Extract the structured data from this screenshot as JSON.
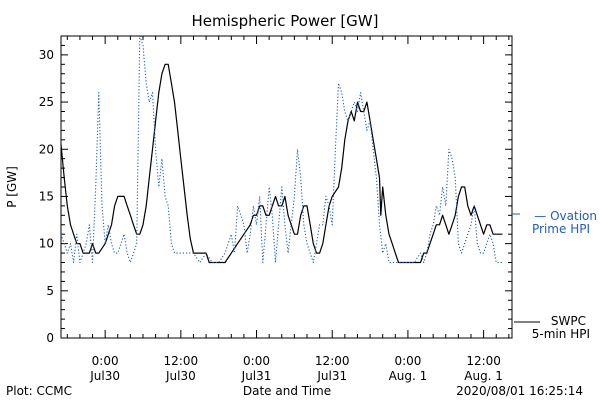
{
  "chart_data": {
    "type": "line",
    "title": "Hemispheric Power [GW]",
    "xlabel": "Date and Time",
    "ylabel": "P [GW]",
    "ylim": [
      0,
      32
    ],
    "yticks": [
      0,
      5,
      10,
      15,
      20,
      25,
      30
    ],
    "x_unit": "hours",
    "x_tick_values": [
      0,
      12,
      24,
      36,
      48,
      60
    ],
    "x_tick_labels": [
      {
        "time": "0:00",
        "date": "Jul30"
      },
      {
        "time": "12:00",
        "date": "Jul30"
      },
      {
        "time": "0:00",
        "date": "Jul31"
      },
      {
        "time": "12:00",
        "date": "Jul31"
      },
      {
        "time": "0:00",
        "date": "Aug. 1"
      },
      {
        "time": "12:00",
        "date": "Aug. 1"
      }
    ],
    "xlim": [
      -7,
      64.5
    ],
    "series": [
      {
        "name": "SWPC 5-min HPI",
        "legend_line1": "SWPC",
        "legend_line2": "5-min HPI",
        "color": "#000000",
        "style": "solid",
        "points": [
          [
            -7,
            20.5
          ],
          [
            -6.5,
            17
          ],
          [
            -6,
            14
          ],
          [
            -5.5,
            12
          ],
          [
            -5,
            11
          ],
          [
            -4.5,
            10
          ],
          [
            -4,
            10
          ],
          [
            -3.5,
            9
          ],
          [
            -3,
            9
          ],
          [
            -2.5,
            9
          ],
          [
            -2,
            10
          ],
          [
            -1.5,
            9
          ],
          [
            -1,
            9
          ],
          [
            0,
            10
          ],
          [
            1,
            12
          ],
          [
            1.5,
            14
          ],
          [
            2,
            15
          ],
          [
            3,
            15
          ],
          [
            3.5,
            14
          ],
          [
            4,
            13
          ],
          [
            4.5,
            12
          ],
          [
            5,
            11
          ],
          [
            5.5,
            11
          ],
          [
            6,
            12
          ],
          [
            6.5,
            14
          ],
          [
            7,
            17
          ],
          [
            7.5,
            20
          ],
          [
            8,
            23
          ],
          [
            8.5,
            26
          ],
          [
            9,
            28
          ],
          [
            9.5,
            29
          ],
          [
            10,
            29
          ],
          [
            10.5,
            27
          ],
          [
            11,
            25
          ],
          [
            11.5,
            22
          ],
          [
            12,
            19
          ],
          [
            12.5,
            16
          ],
          [
            13,
            13
          ],
          [
            13.5,
            10.5
          ],
          [
            14,
            9
          ],
          [
            15,
            9
          ],
          [
            16,
            9
          ],
          [
            16.5,
            8
          ],
          [
            18,
            8
          ],
          [
            19,
            8
          ],
          [
            20,
            9
          ],
          [
            21,
            10
          ],
          [
            22,
            11
          ],
          [
            23,
            12
          ],
          [
            23.5,
            13
          ],
          [
            24,
            13
          ],
          [
            24.5,
            14
          ],
          [
            25,
            14
          ],
          [
            25.5,
            13
          ],
          [
            26,
            13
          ],
          [
            26.5,
            14
          ],
          [
            27,
            15
          ],
          [
            27.5,
            14
          ],
          [
            28,
            14
          ],
          [
            28.5,
            15
          ],
          [
            29,
            13
          ],
          [
            29.5,
            12
          ],
          [
            30,
            11
          ],
          [
            30.5,
            11
          ],
          [
            31,
            13
          ],
          [
            31.5,
            14
          ],
          [
            32,
            14
          ],
          [
            32.5,
            12
          ],
          [
            33,
            10
          ],
          [
            33.5,
            9
          ],
          [
            34,
            9
          ],
          [
            34.5,
            10
          ],
          [
            35,
            12
          ],
          [
            35.5,
            14
          ],
          [
            36,
            15
          ],
          [
            37,
            16
          ],
          [
            37.5,
            18
          ],
          [
            38,
            21
          ],
          [
            38.5,
            23
          ],
          [
            39,
            24
          ],
          [
            39.5,
            23
          ],
          [
            40,
            25
          ],
          [
            40.5,
            24
          ],
          [
            41,
            24
          ],
          [
            41.5,
            25
          ],
          [
            42,
            23
          ],
          [
            42.5,
            21
          ],
          [
            43,
            19
          ],
          [
            43.5,
            17
          ],
          [
            43.7,
            13
          ],
          [
            44,
            16
          ],
          [
            44.5,
            13
          ],
          [
            45,
            11
          ],
          [
            45.5,
            10
          ],
          [
            46,
            9
          ],
          [
            46.5,
            8
          ],
          [
            48,
            8
          ],
          [
            49,
            8
          ],
          [
            50,
            8
          ],
          [
            50.5,
            9
          ],
          [
            51,
            9
          ],
          [
            51.5,
            10
          ],
          [
            52,
            11
          ],
          [
            52.5,
            12
          ],
          [
            53,
            12
          ],
          [
            53.5,
            13
          ],
          [
            54,
            12
          ],
          [
            54.5,
            11
          ],
          [
            55,
            12
          ],
          [
            55.5,
            13
          ],
          [
            56,
            15
          ],
          [
            56.5,
            16
          ],
          [
            57,
            16
          ],
          [
            57.5,
            14
          ],
          [
            58,
            13
          ],
          [
            58.5,
            14
          ],
          [
            59,
            13
          ],
          [
            59.5,
            12
          ],
          [
            60,
            11
          ],
          [
            60.5,
            12
          ],
          [
            61,
            12
          ],
          [
            61.5,
            11
          ],
          [
            62,
            11
          ],
          [
            63,
            11
          ]
        ]
      },
      {
        "name": "Ovation Prime HPI",
        "legend_line1": "— Ovation",
        "legend_line2": "Prime HPI",
        "color": "#1f5fbf",
        "style": "dotted",
        "points": [
          [
            -7,
            11
          ],
          [
            -6.5,
            10
          ],
          [
            -6,
            9
          ],
          [
            -5.5,
            10
          ],
          [
            -5,
            8
          ],
          [
            -4.5,
            11
          ],
          [
            -4,
            8
          ],
          [
            -3.5,
            9
          ],
          [
            -3,
            10
          ],
          [
            -2.5,
            12
          ],
          [
            -2,
            8
          ],
          [
            -1.5,
            16
          ],
          [
            -1,
            26
          ],
          [
            -0.5,
            14
          ],
          [
            0,
            10
          ],
          [
            0.5,
            12
          ],
          [
            1,
            10
          ],
          [
            1.5,
            9
          ],
          [
            2,
            9
          ],
          [
            3,
            11
          ],
          [
            3.5,
            9
          ],
          [
            4,
            8
          ],
          [
            5,
            10
          ],
          [
            5.5,
            32
          ],
          [
            6,
            31
          ],
          [
            6.5,
            27
          ],
          [
            7,
            25
          ],
          [
            7.5,
            26
          ],
          [
            8,
            20
          ],
          [
            8.5,
            16
          ],
          [
            9,
            19
          ],
          [
            9.5,
            15
          ],
          [
            10,
            14
          ],
          [
            10.5,
            10
          ],
          [
            11,
            9
          ],
          [
            12,
            9
          ],
          [
            13,
            9
          ],
          [
            14,
            9
          ],
          [
            15,
            8
          ],
          [
            16,
            9
          ],
          [
            17,
            8
          ],
          [
            18,
            8
          ],
          [
            19,
            9
          ],
          [
            20,
            11
          ],
          [
            20.5,
            9
          ],
          [
            21,
            14
          ],
          [
            21.5,
            13
          ],
          [
            22,
            12
          ],
          [
            22.5,
            9
          ],
          [
            23,
            11
          ],
          [
            23.5,
            14
          ],
          [
            24,
            12
          ],
          [
            24.5,
            15
          ],
          [
            25,
            8
          ],
          [
            25.5,
            12
          ],
          [
            26,
            16
          ],
          [
            26.5,
            13
          ],
          [
            27,
            8
          ],
          [
            27.5,
            12
          ],
          [
            28,
            16
          ],
          [
            28.5,
            12
          ],
          [
            29,
            9
          ],
          [
            29.5,
            12
          ],
          [
            30,
            15
          ],
          [
            30.5,
            20
          ],
          [
            31,
            17
          ],
          [
            31.5,
            12
          ],
          [
            32,
            10
          ],
          [
            32.5,
            9
          ],
          [
            33,
            8
          ],
          [
            33.5,
            10
          ],
          [
            34,
            12
          ],
          [
            34.5,
            12
          ],
          [
            35,
            15
          ],
          [
            35.5,
            14
          ],
          [
            36,
            12
          ],
          [
            36.5,
            20
          ],
          [
            37,
            27
          ],
          [
            37.5,
            26
          ],
          [
            38,
            24
          ],
          [
            38.5,
            23
          ],
          [
            39,
            24
          ],
          [
            39.5,
            25
          ],
          [
            40,
            24
          ],
          [
            40.5,
            26
          ],
          [
            41,
            24
          ],
          [
            41.5,
            22
          ],
          [
            42,
            23
          ],
          [
            42.5,
            20
          ],
          [
            43,
            17
          ],
          [
            43.5,
            12
          ],
          [
            44,
            9
          ],
          [
            44.5,
            10
          ],
          [
            45,
            8
          ],
          [
            46,
            8
          ],
          [
            47,
            8
          ],
          [
            48,
            8
          ],
          [
            49,
            8
          ],
          [
            50,
            9
          ],
          [
            50.5,
            8
          ],
          [
            51,
            9
          ],
          [
            51.5,
            11
          ],
          [
            52,
            12
          ],
          [
            52.5,
            14
          ],
          [
            53,
            13
          ],
          [
            53.5,
            16
          ],
          [
            54,
            14
          ],
          [
            54.5,
            20
          ],
          [
            55,
            19
          ],
          [
            55.5,
            17
          ],
          [
            56,
            10
          ],
          [
            56.5,
            9
          ],
          [
            57,
            10
          ],
          [
            57.5,
            11
          ],
          [
            58,
            12
          ],
          [
            58.5,
            14
          ],
          [
            59,
            10
          ],
          [
            59.5,
            9
          ],
          [
            60,
            9
          ],
          [
            60.5,
            10
          ],
          [
            61,
            11
          ],
          [
            61.5,
            10
          ],
          [
            62,
            8
          ],
          [
            63,
            8
          ]
        ]
      }
    ]
  },
  "footer": {
    "left": "Plot: CCMC",
    "timestamp": "2020/08/01 16:25:14"
  }
}
